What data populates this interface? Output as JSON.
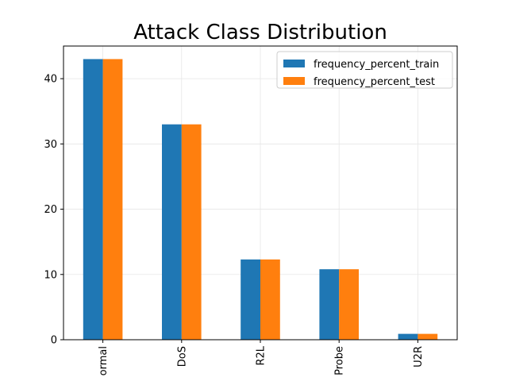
{
  "chart_data": {
    "type": "bar",
    "title": "Attack Class Distribution",
    "xlabel": "",
    "ylabel": "",
    "categories": [
      "ormal",
      "DoS",
      "R2L",
      "Probe",
      "U2R"
    ],
    "series": [
      {
        "name": "frequency_percent_train",
        "values": [
          43.0,
          33.0,
          12.3,
          10.8,
          0.9
        ],
        "color": "#1f77b4"
      },
      {
        "name": "frequency_percent_test",
        "values": [
          43.0,
          33.0,
          12.3,
          10.8,
          0.9
        ],
        "color": "#ff7f0e"
      }
    ],
    "ylim": [
      0,
      45
    ],
    "yticks": [
      0,
      10,
      20,
      30,
      40
    ],
    "grid": true,
    "legend_position": "top-right"
  }
}
